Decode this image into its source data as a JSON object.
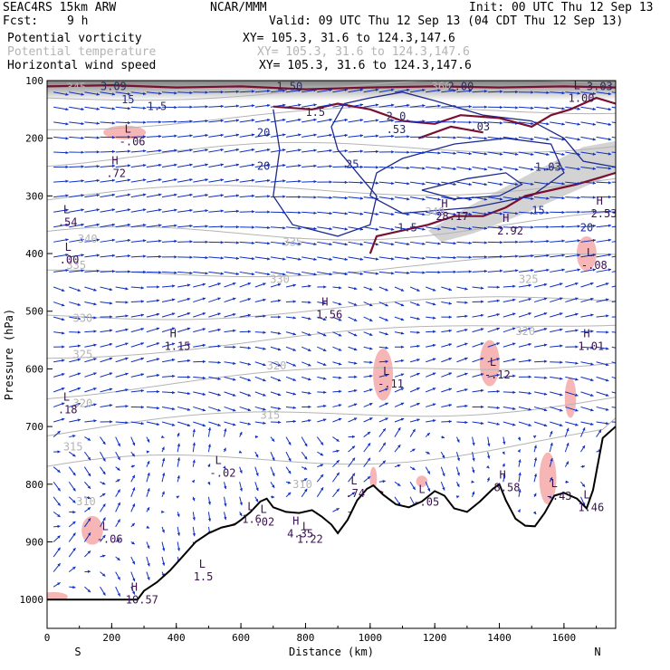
{
  "header": {
    "model": "SEAC4RS 15km ARW",
    "org": "NCAR/MMM",
    "init": "Init: 00 UTC Thu 12 Sep 13",
    "fcst_label": "Fcst:",
    "fcst_value": "9 h",
    "valid": "Valid: 09 UTC Thu 12 Sep 13 (04 CDT Thu 12 Sep 13)",
    "fields": [
      {
        "name": "Potential vorticity",
        "xy": "XY= 105.3, 31.6 to 124.3,147.6"
      },
      {
        "name": "Potential temperature",
        "xy": "XY= 105.3, 31.6 to 124.3,147.6"
      },
      {
        "name": "Horizontal wind speed",
        "xy": "XY= 105.3, 31.6 to 124.3,147.6"
      }
    ]
  },
  "colors": {
    "pv": "#7a1030",
    "theta": "#b4b4b4",
    "wind": "#1e2a8c",
    "vector": "#1030c0",
    "pv_fill": "#f7b6b6",
    "terrain": "#000000"
  },
  "chart_data": {
    "type": "contour",
    "xlabel": "Distance (km)",
    "ylabel": "Pressure (hPa)",
    "xlim": [
      0,
      1760
    ],
    "ylim": [
      1050,
      100
    ],
    "x_ticks": [
      0,
      200,
      400,
      600,
      800,
      1000,
      1200,
      1400,
      1600
    ],
    "y_ticks": [
      100,
      200,
      300,
      400,
      500,
      600,
      700,
      800,
      900,
      1000
    ],
    "end_labels": {
      "left": "S",
      "right": "N"
    },
    "theta_labels": [
      {
        "x": 60,
        "p": 112,
        "t": "345"
      },
      {
        "x": 1190,
        "p": 110,
        "t": "360"
      },
      {
        "x": 95,
        "p": 375,
        "t": "340"
      },
      {
        "x": 730,
        "p": 380,
        "t": "335"
      },
      {
        "x": 1170,
        "p": 328,
        "t": "340"
      },
      {
        "x": 60,
        "p": 420,
        "t": "335"
      },
      {
        "x": 690,
        "p": 445,
        "t": "330"
      },
      {
        "x": 1460,
        "p": 445,
        "t": "325"
      },
      {
        "x": 80,
        "p": 512,
        "t": "330"
      },
      {
        "x": 1450,
        "p": 535,
        "t": "320"
      },
      {
        "x": 80,
        "p": 575,
        "t": "325"
      },
      {
        "x": 680,
        "p": 595,
        "t": "320"
      },
      {
        "x": 80,
        "p": 660,
        "t": "320"
      },
      {
        "x": 660,
        "p": 680,
        "t": "315"
      },
      {
        "x": 50,
        "p": 735,
        "t": "315"
      },
      {
        "x": 760,
        "p": 800,
        "t": "310"
      },
      {
        "x": 90,
        "p": 830,
        "t": "310"
      }
    ],
    "wind_labels": [
      {
        "x": 650,
        "p": 190,
        "t": "20"
      },
      {
        "x": 925,
        "p": 245,
        "t": "25"
      },
      {
        "x": 650,
        "p": 248,
        "t": "20"
      },
      {
        "x": 1650,
        "p": 355,
        "t": "20"
      },
      {
        "x": 1500,
        "p": 325,
        "t": "15"
      },
      {
        "x": 230,
        "p": 133,
        "t": "15"
      }
    ],
    "extrema": [
      {
        "type": "L",
        "x": 240,
        "p": 190,
        "v": "-.06"
      },
      {
        "type": "H",
        "x": 200,
        "p": 245,
        "v": ".72"
      },
      {
        "type": "L",
        "x": 50,
        "p": 330,
        "v": ".54"
      },
      {
        "type": "L",
        "x": 55,
        "p": 395,
        "v": ".00"
      },
      {
        "type": "H",
        "x": 1220,
        "p": 320,
        "v": "28.17"
      },
      {
        "type": "H",
        "x": 1410,
        "p": 345,
        "v": "2.92"
      },
      {
        "type": "H",
        "x": 1700,
        "p": 315,
        "v": "2.53"
      },
      {
        "type": "L",
        "x": 1630,
        "p": 115,
        "v": "1.00"
      },
      {
        "type": "L",
        "x": 1670,
        "p": 405,
        "v": "-.08"
      },
      {
        "type": "H",
        "x": 850,
        "p": 490,
        "v": "1.56"
      },
      {
        "type": "H",
        "x": 380,
        "p": 545,
        "v": "1.15"
      },
      {
        "type": "H",
        "x": 1660,
        "p": 545,
        "v": "1.01"
      },
      {
        "type": "L",
        "x": 1040,
        "p": 610,
        "v": "-.11"
      },
      {
        "type": "L",
        "x": 1370,
        "p": 595,
        "v": "-.12"
      },
      {
        "type": "L",
        "x": 50,
        "p": 655,
        "v": ".18"
      },
      {
        "type": "L",
        "x": 520,
        "p": 765,
        "v": "-.02"
      },
      {
        "type": "L",
        "x": 940,
        "p": 800,
        "v": ".74"
      },
      {
        "type": "L",
        "x": 1150,
        "p": 815,
        "v": "-.05"
      },
      {
        "type": "H",
        "x": 1400,
        "p": 790,
        "v": "8.58"
      },
      {
        "type": "L",
        "x": 1560,
        "p": 805,
        "v": "-.43"
      },
      {
        "type": "L",
        "x": 1660,
        "p": 825,
        "v": "1.46"
      },
      {
        "type": "L",
        "x": 620,
        "p": 845,
        "v": "1.6"
      },
      {
        "type": "L",
        "x": 660,
        "p": 850,
        "v": ".02"
      },
      {
        "type": "H",
        "x": 760,
        "p": 870,
        "v": "4.35"
      },
      {
        "type": "L",
        "x": 790,
        "p": 880,
        "v": "1.22"
      },
      {
        "type": "L",
        "x": 170,
        "p": 880,
        "v": "-.06"
      },
      {
        "type": "H",
        "x": 260,
        "p": 985,
        "v": "10.57"
      },
      {
        "type": "L",
        "x": 470,
        "p": 945,
        "v": "1.5"
      }
    ],
    "upper_labels": [
      {
        "x": 165,
        "p": 110,
        "t": "3.09"
      },
      {
        "x": 710,
        "p": 110,
        "t": "1.50"
      },
      {
        "x": 1240,
        "p": 110,
        "t": "2.00"
      },
      {
        "x": 1670,
        "p": 110,
        "t": "3.03"
      },
      {
        "x": 310,
        "p": 145,
        "t": "1.5"
      },
      {
        "x": 800,
        "p": 155,
        "t": "1.5"
      },
      {
        "x": 1050,
        "p": 162,
        "t": "2.0"
      },
      {
        "x": 1050,
        "p": 185,
        "t": ".53"
      },
      {
        "x": 1310,
        "p": 180,
        "t": ".03"
      },
      {
        "x": 1510,
        "p": 250,
        "t": "1.03"
      },
      {
        "x": 1085,
        "p": 355,
        "t": "1.5"
      }
    ],
    "terrain": [
      [
        0,
        1000
      ],
      [
        280,
        1000
      ],
      [
        300,
        985
      ],
      [
        340,
        970
      ],
      [
        380,
        950
      ],
      [
        420,
        925
      ],
      [
        460,
        900
      ],
      [
        500,
        885
      ],
      [
        540,
        875
      ],
      [
        580,
        870
      ],
      [
        600,
        862
      ],
      [
        630,
        848
      ],
      [
        660,
        830
      ],
      [
        680,
        825
      ],
      [
        700,
        840
      ],
      [
        740,
        848
      ],
      [
        780,
        850
      ],
      [
        820,
        845
      ],
      [
        850,
        856
      ],
      [
        880,
        870
      ],
      [
        900,
        885
      ],
      [
        930,
        862
      ],
      [
        960,
        828
      ],
      [
        990,
        808
      ],
      [
        1010,
        802
      ],
      [
        1040,
        818
      ],
      [
        1080,
        835
      ],
      [
        1120,
        840
      ],
      [
        1160,
        830
      ],
      [
        1200,
        812
      ],
      [
        1230,
        820
      ],
      [
        1260,
        842
      ],
      [
        1300,
        848
      ],
      [
        1340,
        830
      ],
      [
        1380,
        808
      ],
      [
        1400,
        800
      ],
      [
        1420,
        828
      ],
      [
        1450,
        860
      ],
      [
        1480,
        872
      ],
      [
        1510,
        873
      ],
      [
        1540,
        850
      ],
      [
        1570,
        820
      ],
      [
        1600,
        815
      ],
      [
        1640,
        825
      ],
      [
        1670,
        842
      ],
      [
        1690,
        810
      ],
      [
        1720,
        720
      ],
      [
        1760,
        700
      ]
    ]
  }
}
